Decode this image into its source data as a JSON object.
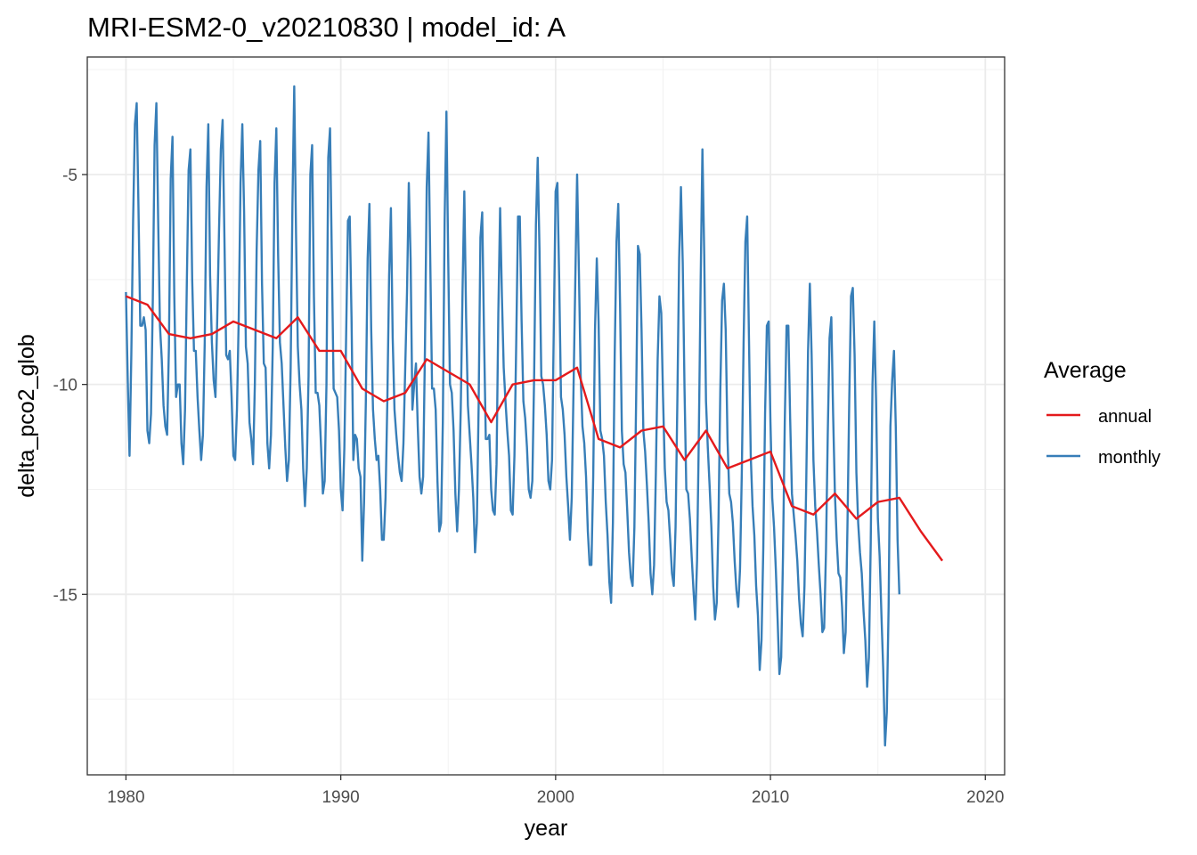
{
  "chart_data": {
    "type": "line",
    "title": "MRI-ESM2-0_v20210830 | model_id: A",
    "xlabel": "year",
    "ylabel": "delta_pco2_glob",
    "xlim": [
      1978.2,
      2020.9
    ],
    "ylim": [
      -19.3,
      -2.2
    ],
    "x_ticks": [
      1980,
      1990,
      2000,
      2010,
      2020
    ],
    "x_tick_labels": [
      "1980",
      "1990",
      "2000",
      "2010",
      "2020"
    ],
    "y_ticks": [
      -15,
      -10,
      -5
    ],
    "y_tick_labels": [
      "-15",
      "-10",
      "-5"
    ],
    "grid": true,
    "legend": {
      "title": "Average",
      "position": "right",
      "entries": [
        {
          "label": "annual",
          "color": "#e41a1c"
        },
        {
          "label": "monthly",
          "color": "#377eb8"
        }
      ]
    },
    "series": [
      {
        "name": "monthly",
        "color": "#377eb8",
        "x_start": 1980.0,
        "x_step": 0.0833333,
        "values": [
          -7.8,
          -9.9,
          -11.7,
          -9.3,
          -6.1,
          -3.8,
          -3.3,
          -5.8,
          -8.6,
          -8.6,
          -8.4,
          -8.7,
          -11.1,
          -11.4,
          -10.7,
          -8.0,
          -4.3,
          -3.3,
          -6.1,
          -8.6,
          -9.4,
          -10.5,
          -11.0,
          -11.2,
          -9.1,
          -5.1,
          -4.1,
          -7.9,
          -10.3,
          -10.0,
          -10.0,
          -11.4,
          -11.9,
          -10.6,
          -7.6,
          -4.9,
          -4.4,
          -7.5,
          -9.2,
          -9.2,
          -10.3,
          -11.1,
          -11.8,
          -11.2,
          -9.0,
          -5.3,
          -3.8,
          -7.4,
          -9.0,
          -9.9,
          -10.3,
          -8.4,
          -6.3,
          -4.4,
          -3.7,
          -6.5,
          -9.3,
          -9.4,
          -9.2,
          -10.3,
          -11.7,
          -11.8,
          -10.6,
          -8.4,
          -5.2,
          -3.8,
          -5.9,
          -9.1,
          -9.5,
          -10.9,
          -11.3,
          -11.9,
          -10.0,
          -6.8,
          -4.9,
          -4.2,
          -7.6,
          -9.5,
          -9.6,
          -11.4,
          -12.0,
          -11.2,
          -9.1,
          -5.2,
          -3.9,
          -6.9,
          -9.0,
          -9.5,
          -10.5,
          -11.5,
          -12.3,
          -11.8,
          -9.6,
          -5.7,
          -2.9,
          -6.4,
          -9.1,
          -10.0,
          -10.6,
          -12.0,
          -12.9,
          -12.0,
          -9.8,
          -5.0,
          -4.3,
          -7.9,
          -10.2,
          -10.2,
          -10.5,
          -11.5,
          -12.6,
          -12.3,
          -10.0,
          -4.6,
          -3.9,
          -7.0,
          -10.1,
          -10.2,
          -10.3,
          -11.1,
          -12.5,
          -13.0,
          -11.5,
          -8.8,
          -6.1,
          -6.0,
          -8.4,
          -11.8,
          -11.2,
          -11.3,
          -12.0,
          -12.2,
          -14.2,
          -12.8,
          -10.4,
          -7.0,
          -5.7,
          -8.7,
          -10.6,
          -11.3,
          -11.8,
          -11.7,
          -12.5,
          -13.7,
          -13.7,
          -12.7,
          -10.4,
          -7.4,
          -5.8,
          -8.9,
          -10.6,
          -11.2,
          -11.7,
          -12.1,
          -12.3,
          -11.4,
          -9.6,
          -7.8,
          -5.2,
          -7.0,
          -10.6,
          -10.0,
          -9.5,
          -11.0,
          -12.2,
          -12.6,
          -12.2,
          -9.2,
          -5.3,
          -4.0,
          -7.1,
          -10.1,
          -10.1,
          -10.6,
          -12.3,
          -13.5,
          -13.3,
          -10.9,
          -6.1,
          -3.5,
          -7.0,
          -10.0,
          -10.2,
          -11.1,
          -12.6,
          -13.5,
          -12.5,
          -10.6,
          -7.8,
          -5.4,
          -8.4,
          -10.5,
          -11.2,
          -11.9,
          -12.7,
          -14.0,
          -13.3,
          -10.5,
          -6.5,
          -5.9,
          -8.8,
          -11.3,
          -11.3,
          -11.2,
          -12.5,
          -13.0,
          -13.1,
          -11.9,
          -8.3,
          -5.8,
          -7.9,
          -9.6,
          -10.4,
          -11.1,
          -11.7,
          -13.0,
          -13.1,
          -11.7,
          -9.0,
          -6.0,
          -6.0,
          -8.5,
          -10.4,
          -10.8,
          -11.5,
          -12.5,
          -12.7,
          -12.3,
          -9.8,
          -6.2,
          -4.6,
          -6.8,
          -9.8,
          -10.0,
          -10.5,
          -11.2,
          -12.3,
          -12.5,
          -11.8,
          -8.6,
          -5.4,
          -5.2,
          -7.5,
          -10.3,
          -10.6,
          -11.2,
          -12.2,
          -12.9,
          -13.7,
          -12.7,
          -10.1,
          -7.5,
          -5.0,
          -7.3,
          -9.8,
          -11.0,
          -11.4,
          -12.2,
          -13.5,
          -14.3,
          -14.3,
          -12.2,
          -8.7,
          -7.0,
          -8.5,
          -11.1,
          -11.3,
          -11.7,
          -12.8,
          -13.6,
          -14.7,
          -15.2,
          -13.3,
          -9.3,
          -6.6,
          -5.7,
          -8.1,
          -11.1,
          -11.9,
          -12.1,
          -13.0,
          -14.0,
          -14.6,
          -14.8,
          -13.4,
          -10.3,
          -6.7,
          -6.9,
          -8.7,
          -11.1,
          -11.6,
          -12.4,
          -13.3,
          -14.5,
          -15.0,
          -14.3,
          -12.1,
          -9.4,
          -7.9,
          -8.3,
          -10.3,
          -12.0,
          -12.8,
          -13.0,
          -13.7,
          -14.5,
          -14.8,
          -13.4,
          -10.4,
          -7.0,
          -5.3,
          -7.1,
          -10.1,
          -12.5,
          -12.6,
          -13.2,
          -14.1,
          -14.9,
          -15.6,
          -14.2,
          -11.2,
          -7.6,
          -4.4,
          -6.9,
          -10.4,
          -11.5,
          -12.4,
          -13.4,
          -14.8,
          -15.6,
          -15.2,
          -13.2,
          -10.1,
          -8.0,
          -7.6,
          -8.7,
          -11.3,
          -12.6,
          -12.8,
          -13.3,
          -14.2,
          -14.9,
          -15.3,
          -14.4,
          -12.1,
          -9.0,
          -6.6,
          -6.0,
          -8.9,
          -11.7,
          -12.9,
          -13.6,
          -14.8,
          -15.5,
          -16.8,
          -16.1,
          -13.9,
          -10.7,
          -8.6,
          -8.5,
          -10.9,
          -12.7,
          -13.4,
          -14.4,
          -15.6,
          -16.9,
          -16.5,
          -14.1,
          -10.9,
          -8.6,
          -8.6,
          -10.8,
          -12.6,
          -13.1,
          -13.6,
          -14.2,
          -15.1,
          -15.7,
          -16.0,
          -14.8,
          -12.3,
          -9.2,
          -7.6,
          -9.3,
          -11.8,
          -12.9,
          -13.5,
          -14.3,
          -15.0,
          -15.9,
          -15.8,
          -14.0,
          -11.2,
          -8.9,
          -8.4,
          -10.7,
          -12.6,
          -13.7,
          -14.5,
          -14.6,
          -15.3,
          -16.4,
          -15.9,
          -13.4,
          -10.4,
          -7.9,
          -7.7,
          -9.3,
          -12.1,
          -13.3,
          -14.0,
          -14.5,
          -15.4,
          -16.1,
          -17.2,
          -16.5,
          -13.8,
          -10.0,
          -8.5,
          -10.4,
          -13.2,
          -14.1,
          -15.5,
          -16.8,
          -18.6,
          -17.8,
          -15.3,
          -11.0,
          -9.9,
          -9.2,
          -11.0,
          -13.7,
          -15.0
        ]
      },
      {
        "name": "annual",
        "color": "#e41a1c",
        "x": [
          1980,
          1981,
          1982,
          1983,
          1984,
          1985,
          1986,
          1987,
          1988,
          1989,
          1990,
          1991,
          1992,
          1993,
          1994,
          1995,
          1996,
          1997,
          1998,
          1999,
          2000,
          2001,
          2002,
          2003,
          2004,
          2005,
          2006,
          2007,
          2008,
          2009,
          2010,
          2011,
          2012,
          2013,
          2014,
          2015,
          2016,
          2017,
          2018
        ],
        "y": [
          -7.9,
          -8.1,
          -8.8,
          -8.9,
          -8.8,
          -8.5,
          -8.7,
          -8.9,
          -8.4,
          -9.2,
          -9.2,
          -10.1,
          -10.4,
          -10.2,
          -9.4,
          -9.7,
          -10.0,
          -10.9,
          -10.0,
          -9.9,
          -9.9,
          -9.6,
          -11.3,
          -11.5,
          -11.1,
          -11.0,
          -11.8,
          -11.1,
          -12.0,
          -11.8,
          -11.6,
          -12.9,
          -13.1,
          -12.6,
          -13.2,
          -12.8,
          -12.7,
          -13.5,
          -14.2
        ]
      }
    ]
  }
}
